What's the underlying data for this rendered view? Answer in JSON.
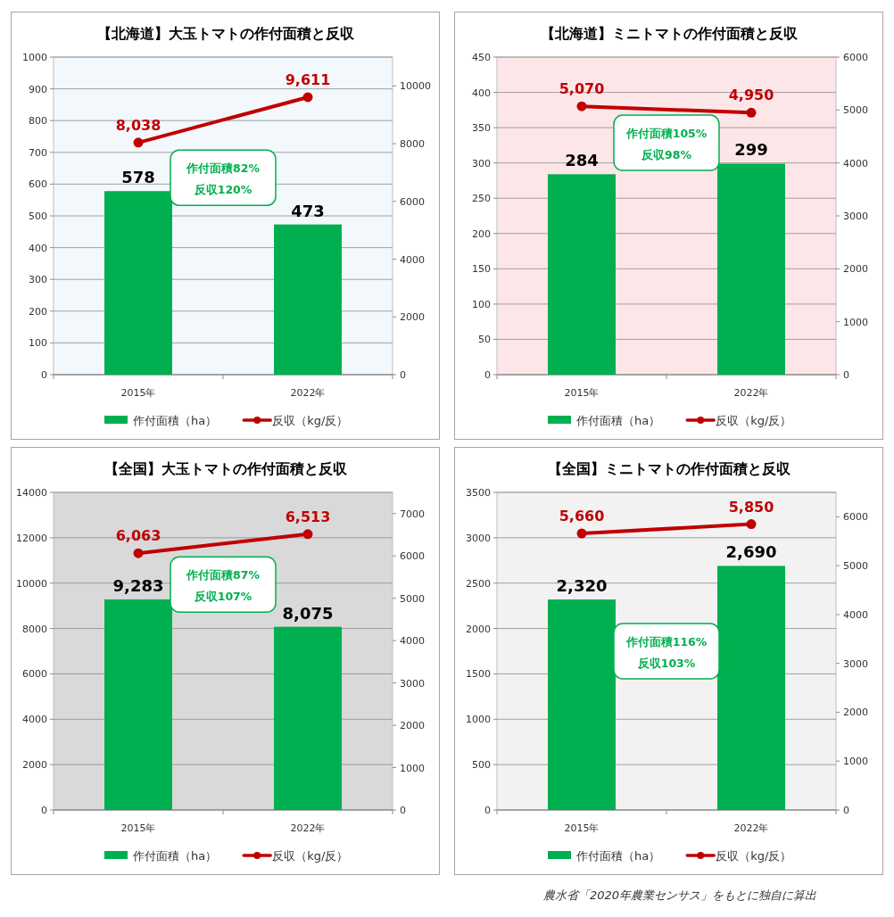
{
  "chart_data": [
    {
      "type": "bar",
      "title": "【北海道】大玉トマトの作付面積と反収",
      "categories": [
        "2015年",
        "2022年"
      ],
      "series": [
        {
          "name": "作付面積（ha）",
          "color": "#00b050",
          "values": [
            578,
            473
          ],
          "value_labels": [
            "578",
            "473"
          ]
        },
        {
          "name": "反収（kg/反）",
          "type": "line",
          "axis": "y2",
          "color": "#c00000",
          "values": [
            8038,
            9611
          ],
          "value_labels": [
            "8,038",
            "9,611"
          ]
        }
      ],
      "ylim": [
        0,
        1000
      ],
      "yticks": [
        0,
        100,
        200,
        300,
        400,
        500,
        600,
        700,
        800,
        900,
        1000
      ],
      "y2lim": [
        0,
        11000
      ],
      "y2ticks": [
        0,
        2000,
        4000,
        6000,
        8000,
        10000
      ],
      "grid": "y",
      "legend": "bottom",
      "marker": "circle",
      "annotations": [
        "作付面積82%",
        "反収120%"
      ]
    },
    {
      "type": "bar",
      "title": "【北海道】ミニトマトの作付面積と反収",
      "categories": [
        "2015年",
        "2022年"
      ],
      "series": [
        {
          "name": "作付面積（ha）",
          "color": "#00b050",
          "values": [
            284,
            299
          ],
          "value_labels": [
            "284",
            "299"
          ]
        },
        {
          "name": "反収（kg/反）",
          "type": "line",
          "axis": "y2",
          "color": "#c00000",
          "values": [
            5070,
            4950
          ],
          "value_labels": [
            "5,070",
            "4,950"
          ]
        }
      ],
      "ylim": [
        0,
        450
      ],
      "yticks": [
        0,
        50,
        100,
        150,
        200,
        250,
        300,
        350,
        400,
        450
      ],
      "y2lim": [
        0,
        6000
      ],
      "y2ticks": [
        0,
        1000,
        2000,
        3000,
        4000,
        5000,
        6000
      ],
      "grid": "y",
      "legend": "bottom",
      "marker": "circle",
      "annotations": [
        "作付面積105%",
        "反収98%"
      ]
    },
    {
      "type": "bar",
      "title": "【全国】大玉トマトの作付面積と反収",
      "categories": [
        "2015年",
        "2022年"
      ],
      "series": [
        {
          "name": "作付面積（ha）",
          "color": "#00b050",
          "values": [
            9283,
            8075
          ],
          "value_labels": [
            "9,283",
            "8,075"
          ]
        },
        {
          "name": "反収（kg/反）",
          "type": "line",
          "axis": "y2",
          "color": "#c00000",
          "values": [
            6063,
            6513
          ],
          "value_labels": [
            "6,063",
            "6,513"
          ]
        }
      ],
      "ylim": [
        0,
        14000
      ],
      "yticks": [
        0,
        2000,
        4000,
        6000,
        8000,
        10000,
        12000,
        14000
      ],
      "y2lim": [
        0,
        7500
      ],
      "y2ticks": [
        0,
        1000,
        2000,
        3000,
        4000,
        5000,
        6000,
        7000
      ],
      "grid": "y",
      "legend": "bottom",
      "marker": "circle",
      "annotations": [
        "作付面積87%",
        "反収107%"
      ]
    },
    {
      "type": "bar",
      "title": "【全国】ミニトマトの作付面積と反収",
      "categories": [
        "2015年",
        "2022年"
      ],
      "series": [
        {
          "name": "作付面積（ha）",
          "color": "#00b050",
          "values": [
            2320,
            2690
          ],
          "value_labels": [
            "2,320",
            "2,690"
          ]
        },
        {
          "name": "反収（kg/反）",
          "type": "line",
          "axis": "y2",
          "color": "#c00000",
          "values": [
            5660,
            5850
          ],
          "value_labels": [
            "5,660",
            "5,850"
          ]
        }
      ],
      "ylim": [
        0,
        3500
      ],
      "yticks": [
        0,
        500,
        1000,
        1500,
        2000,
        2500,
        3000,
        3500
      ],
      "y2lim": [
        0,
        6500
      ],
      "y2ticks": [
        0,
        1000,
        2000,
        3000,
        4000,
        5000,
        6000
      ],
      "grid": "y",
      "legend": "bottom",
      "marker": "circle",
      "annotations": [
        "作付面積116%",
        "反収103%",
        "農水省「2020年農業センサス」をもとに独自に算出"
      ]
    }
  ]
}
